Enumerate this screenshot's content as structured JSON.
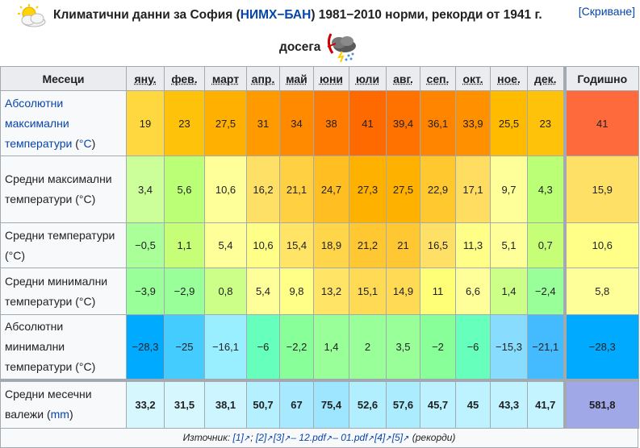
{
  "caption": {
    "line1_prefix": "Климатични данни за София (",
    "line1_link": "НИМХ−БАН",
    "line1_suffix": ") 1981−2010 норми, рекорди от 1941 г.",
    "line2": "досега",
    "hide_label": "[Скриване]",
    "icons": [
      "sun-behind-cloud-icon",
      "thunderstorm-icon"
    ]
  },
  "table": {
    "corner": "Месеци",
    "months": [
      "яну.",
      "фев.",
      "март",
      "апр.",
      "май",
      "юни",
      "юли",
      "авг.",
      "сеп.",
      "окт.",
      "ное.",
      "дек."
    ],
    "annual_header": "Годишно",
    "rows": [
      {
        "label_lines": [
          {
            "text": "Абсолютни ",
            "link": true
          },
          {
            "text": "максимални ",
            "link": true
          },
          {
            "text": "температури",
            "link": true
          },
          {
            "text": " (",
            "link": false
          },
          {
            "text": "°C",
            "link": true
          },
          {
            "text": ")",
            "link": false
          }
        ],
        "values": [
          "19",
          "23",
          "27,5",
          "31",
          "34",
          "38",
          "41",
          "39,4",
          "36,1",
          "33,9",
          "25,5",
          "23"
        ],
        "colors": [
          "#ffd73e",
          "#ffc20a",
          "#ffb000",
          "#ff9a00",
          "#ff8a00",
          "#ff7a00",
          "#ff6a00",
          "#ff7200",
          "#ff8400",
          "#ff9000",
          "#ffbb00",
          "#ffc20a"
        ],
        "annual": "41",
        "annual_color": "#ff6a3d"
      },
      {
        "label_lines": [
          {
            "text": "Средни максимални температури (°C)",
            "link": false
          }
        ],
        "values": [
          "3,4",
          "5,6",
          "10,6",
          "16,2",
          "21,1",
          "24,7",
          "27,3",
          "27,5",
          "22,9",
          "17,1",
          "9,7",
          "4,3"
        ],
        "colors": [
          "#ccff99",
          "#bbff77",
          "#ffff99",
          "#ffe066",
          "#ffd042",
          "#ffbf22",
          "#ffb100",
          "#ffb100",
          "#ffc82e",
          "#ffdd60",
          "#ffff99",
          "#bbff77"
        ],
        "annual": "15,9",
        "annual_color": "#ffe066"
      },
      {
        "label_lines": [
          {
            "text": "Средни температури (°C)",
            "link": false
          }
        ],
        "values": [
          "−0,5",
          "1,1",
          "5,4",
          "10,6",
          "15,4",
          "18,9",
          "21,2",
          "21",
          "16,5",
          "11,3",
          "5,1",
          "0,7"
        ],
        "colors": [
          "#aaff99",
          "#c6ff77",
          "#ffff99",
          "#ffff88",
          "#ffe466",
          "#ffd64a",
          "#ffc832",
          "#ffc832",
          "#ffe066",
          "#ffff88",
          "#ffff99",
          "#c6ff77"
        ],
        "annual": "10,6",
        "annual_color": "#ffff88"
      },
      {
        "label_lines": [
          {
            "text": "Средни минимални температури (°C)",
            "link": false
          }
        ],
        "values": [
          "−3,9",
          "−2,9",
          "0,8",
          "5,4",
          "9,8",
          "13,2",
          "15,1",
          "14,9",
          "11",
          "6,6",
          "1,4",
          "−2,4"
        ],
        "colors": [
          "#99ff99",
          "#99ff99",
          "#ccff88",
          "#ffff99",
          "#ffff88",
          "#ffe466",
          "#ffda55",
          "#ffda55",
          "#ffff77",
          "#ffff99",
          "#ccff88",
          "#99ff99"
        ],
        "annual": "5,8",
        "annual_color": "#ffff99"
      },
      {
        "label_lines": [
          {
            "text": "Абсолютни минимални температури (°C)",
            "link": false
          }
        ],
        "values": [
          "−28,3",
          "−25",
          "−16,1",
          "−6",
          "−2,2",
          "1,4",
          "2",
          "3,5",
          "−2",
          "−6",
          "−15,3",
          "−21,1"
        ],
        "colors": [
          "#00aaff",
          "#44ccff",
          "#99eeff",
          "#66ffbb",
          "#88ff99",
          "#99ff99",
          "#99ff99",
          "#99ff99",
          "#88ff99",
          "#66ffbb",
          "#88ddff",
          "#44bbff"
        ],
        "annual": "−28,3",
        "annual_color": "#00aaff"
      }
    ],
    "precip": {
      "label_lines": [
        {
          "text": "Средни месечни ",
          "link": false
        },
        {
          "text": "валежи",
          "link": false
        },
        {
          "text": " (",
          "link": false
        },
        {
          "text": "mm",
          "link": true
        },
        {
          "text": ")",
          "link": false
        }
      ],
      "values": [
        "33,2",
        "31,5",
        "38,1",
        "50,7",
        "67",
        "75,4",
        "52,6",
        "57,6",
        "45,7",
        "45",
        "43,3",
        "41,7"
      ],
      "colors": [
        "#d7f7ff",
        "#d7f7ff",
        "#cdf5ff",
        "#b4f0ff",
        "#a7eaff",
        "#9ee6ff",
        "#b1efff",
        "#abecff",
        "#bcf2ff",
        "#bdf2ff",
        "#c0f3ff",
        "#c4f4ff"
      ],
      "annual": "581,8",
      "annual_color": "#a1a8e8"
    }
  },
  "source": {
    "prefix": "Източник: ",
    "refs": [
      "[1]",
      "[2]",
      "[3]",
      "– 12.pdf",
      "– 01.pdf",
      "[4]",
      "[5]"
    ],
    "suffix": " (рекорди)"
  }
}
